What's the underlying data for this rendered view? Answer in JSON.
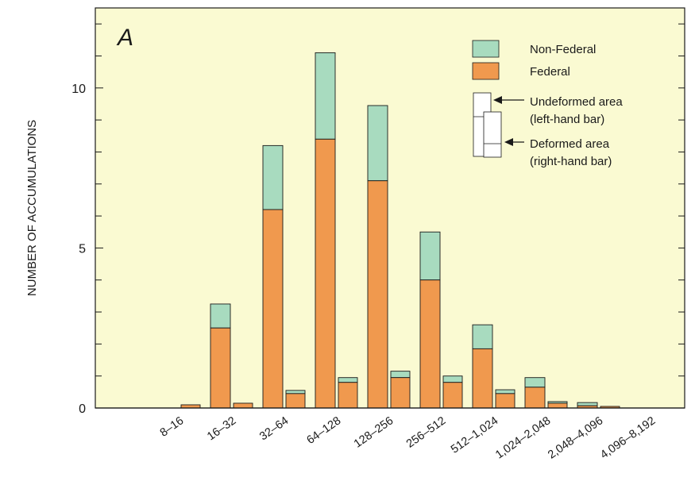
{
  "chart_data": {
    "type": "bar",
    "panel_label": "A",
    "ylabel": "NUMBER OF ACCUMULATIONS",
    "xlabel": "",
    "ylim": [
      0,
      12.5
    ],
    "yticks_labeled": [
      0,
      5,
      10
    ],
    "yticks_minor_step": 1,
    "grid": false,
    "legend_position": "top-right",
    "background_color": "#fafad2",
    "categories": [
      "8–16",
      "16–32",
      "32–64",
      "64–128",
      "128–256",
      "256–512",
      "512–1,024",
      "1,024–2,048",
      "2,048–4,096",
      "4,096–8,192"
    ],
    "series": [
      {
        "name": "Federal",
        "color": "#f0994e",
        "group": "Undeformed area",
        "values": [
          0,
          2.5,
          6.2,
          8.4,
          7.1,
          4.0,
          1.85,
          0.65,
          0.07,
          0
        ]
      },
      {
        "name": "Non-Federal",
        "color": "#a8dbbf",
        "group": "Undeformed area",
        "values": [
          0,
          0.75,
          2.0,
          2.7,
          2.35,
          1.5,
          0.75,
          0.3,
          0.1,
          0
        ]
      },
      {
        "name": "Federal",
        "color": "#f0994e",
        "group": "Deformed area",
        "values": [
          0.1,
          0.15,
          0.45,
          0.8,
          0.95,
          0.8,
          0.45,
          0.15,
          0.05,
          0
        ]
      },
      {
        "name": "Non-Federal",
        "color": "#a8dbbf",
        "group": "Deformed area",
        "values": [
          0,
          0,
          0.1,
          0.15,
          0.2,
          0.2,
          0.12,
          0.05,
          0,
          0
        ]
      }
    ]
  },
  "legend": {
    "items": [
      {
        "label": "Non-Federal",
        "color": "#a8dbbf"
      },
      {
        "label": "Federal",
        "color": "#f0994e"
      }
    ],
    "undeformed_line1": "Undeformed area",
    "undeformed_line2": "(left-hand bar)",
    "deformed_line1": "Deformed area",
    "deformed_line2": "(right-hand bar)"
  }
}
